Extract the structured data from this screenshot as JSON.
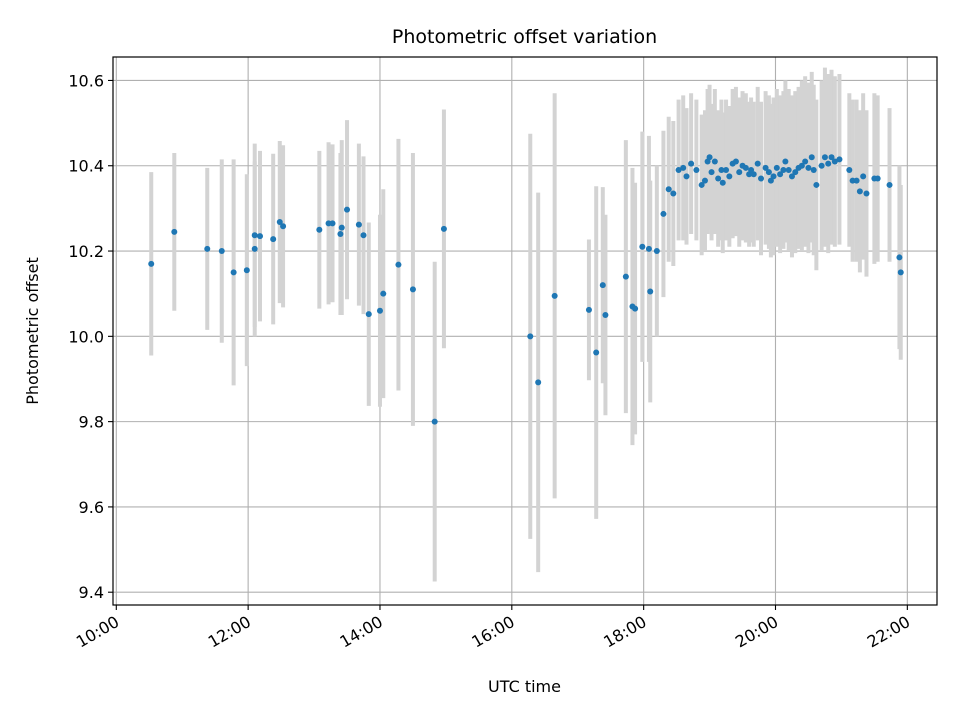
{
  "chart_data": {
    "type": "scatter",
    "title": "Photometric offset variation",
    "xlabel": "UTC time",
    "ylabel": "Photometric offset",
    "x_unit": "hours (UTC)",
    "xlim": [
      9.95,
      22.45
    ],
    "ylim": [
      9.37,
      10.655
    ],
    "xticks": [
      {
        "value": 10,
        "label": "10:00"
      },
      {
        "value": 12,
        "label": "12:00"
      },
      {
        "value": 14,
        "label": "14:00"
      },
      {
        "value": 16,
        "label": "16:00"
      },
      {
        "value": 18,
        "label": "18:00"
      },
      {
        "value": 20,
        "label": "20:00"
      },
      {
        "value": 22,
        "label": "22:00"
      }
    ],
    "yticks": [
      9.4,
      9.6,
      9.8,
      10.0,
      10.2,
      10.4,
      10.6
    ],
    "ytick_labels": [
      "9.4",
      "9.6",
      "9.8",
      "10.0",
      "10.2",
      "10.4",
      "10.6"
    ],
    "grid": true,
    "colors": {
      "points": "#1f77b4",
      "errorbars": "#d3d3d3",
      "grid": "#b0b0b0"
    },
    "series": [
      {
        "x": [
          10.53,
          10.88,
          11.38,
          11.6,
          11.78,
          11.98,
          12.1,
          12.18,
          12.38,
          12.48,
          12.1,
          12.53,
          13.08,
          13.22,
          13.28,
          13.4,
          13.42,
          13.5,
          13.68,
          13.75,
          13.83,
          14.0,
          14.05,
          14.28,
          14.5,
          14.83,
          14.97,
          16.28,
          16.4,
          16.65,
          17.17,
          17.28,
          17.38,
          17.42,
          17.73,
          17.83,
          17.87,
          17.98,
          18.08,
          18.1,
          18.2,
          18.3,
          18.38,
          18.45,
          18.53,
          18.6,
          18.65,
          18.72,
          18.8,
          18.88,
          18.93,
          18.97,
          19.0,
          19.03,
          19.08,
          19.13,
          19.18,
          19.2,
          19.25,
          19.3,
          19.35,
          19.4,
          19.45,
          19.5,
          19.55,
          19.6,
          19.63,
          19.67,
          19.73,
          19.78,
          19.85,
          19.9,
          19.93,
          19.97,
          20.02,
          20.07,
          20.12,
          20.15,
          20.2,
          20.25,
          20.3,
          20.35,
          20.4,
          20.45,
          20.5,
          20.55,
          20.58,
          20.62,
          20.7,
          20.75,
          20.8,
          20.85,
          20.9,
          20.97,
          21.12,
          21.17,
          21.23,
          21.28,
          21.33,
          21.38,
          21.5,
          21.55,
          21.73,
          21.88,
          21.9
        ],
        "y": [
          10.17,
          10.245,
          10.205,
          10.2,
          10.15,
          10.155,
          10.205,
          10.235,
          10.228,
          10.268,
          10.237,
          10.258,
          10.25,
          10.265,
          10.265,
          10.24,
          10.255,
          10.297,
          10.262,
          10.237,
          10.052,
          10.06,
          10.1,
          10.168,
          10.11,
          9.8,
          10.252,
          10.0,
          9.892,
          10.095,
          10.062,
          9.962,
          10.12,
          10.05,
          10.14,
          10.07,
          10.065,
          10.21,
          10.205,
          10.105,
          10.2,
          10.287,
          10.345,
          10.335,
          10.39,
          10.395,
          10.375,
          10.405,
          10.39,
          10.355,
          10.365,
          10.41,
          10.42,
          10.385,
          10.41,
          10.37,
          10.39,
          10.36,
          10.39,
          10.375,
          10.405,
          10.41,
          10.385,
          10.4,
          10.395,
          10.38,
          10.39,
          10.38,
          10.405,
          10.37,
          10.395,
          10.385,
          10.365,
          10.375,
          10.395,
          10.38,
          10.39,
          10.41,
          10.39,
          10.375,
          10.385,
          10.395,
          10.4,
          10.41,
          10.395,
          10.42,
          10.39,
          10.355,
          10.4,
          10.42,
          10.405,
          10.42,
          10.41,
          10.415,
          10.39,
          10.365,
          10.365,
          10.34,
          10.375,
          10.335,
          10.37,
          10.37,
          10.355,
          10.185,
          10.15
        ],
        "yerr": [
          0.215,
          0.185,
          0.19,
          0.215,
          0.265,
          0.225,
          0.205,
          0.2,
          0.2,
          0.19,
          0.215,
          0.19,
          0.185,
          0.19,
          0.185,
          0.19,
          0.205,
          0.21,
          0.19,
          0.185,
          0.215,
          0.225,
          0.245,
          0.295,
          0.32,
          0.375,
          0.28,
          0.475,
          0.445,
          0.475,
          0.165,
          0.39,
          0.23,
          0.235,
          0.32,
          0.325,
          0.295,
          0.27,
          0.265,
          0.26,
          0.2,
          0.195,
          0.17,
          0.17,
          0.165,
          0.17,
          0.16,
          0.165,
          0.165,
          0.165,
          0.165,
          0.17,
          0.17,
          0.16,
          0.17,
          0.16,
          0.165,
          0.165,
          0.165,
          0.165,
          0.175,
          0.175,
          0.175,
          0.175,
          0.175,
          0.17,
          0.17,
          0.17,
          0.18,
          0.18,
          0.18,
          0.18,
          0.18,
          0.185,
          0.185,
          0.185,
          0.185,
          0.19,
          0.19,
          0.19,
          0.19,
          0.19,
          0.2,
          0.2,
          0.2,
          0.2,
          0.2,
          0.2,
          0.2,
          0.21,
          0.21,
          0.205,
          0.2,
          0.2,
          0.18,
          0.19,
          0.19,
          0.19,
          0.195,
          0.195,
          0.2,
          0.195,
          0.18,
          0.215,
          0.205
        ]
      }
    ]
  }
}
